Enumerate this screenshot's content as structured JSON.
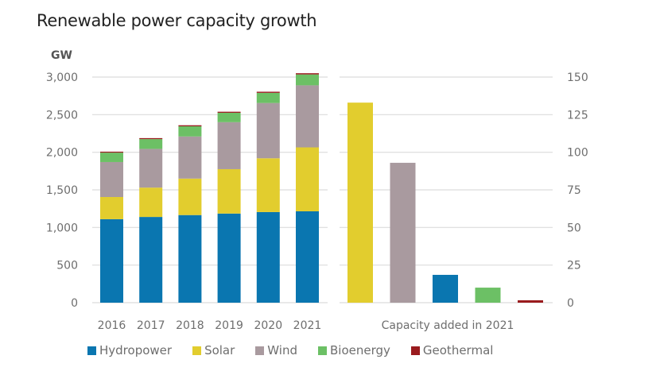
{
  "chart_data": [
    {
      "type": "bar",
      "stacked": true,
      "title": "Renewable power capacity growth",
      "ylabel": "GW",
      "xlabel": "",
      "ylim": [
        0,
        3000
      ],
      "yticks": [
        0,
        500,
        1000,
        1500,
        2000,
        2500,
        3000
      ],
      "ytick_labels": [
        "0",
        "500",
        "1,000",
        "1,500",
        "2,000",
        "2,500",
        "3,000"
      ],
      "grid": true,
      "categories": [
        "2016",
        "2017",
        "2018",
        "2019",
        "2020",
        "2021"
      ],
      "series": [
        {
          "name": "Hydropower",
          "color": "#0a76b0",
          "values": [
            1110,
            1140,
            1165,
            1185,
            1205,
            1215
          ]
        },
        {
          "name": "Solar",
          "color": "#e2cd2e",
          "values": [
            295,
            390,
            485,
            590,
            715,
            850
          ]
        },
        {
          "name": "Wind",
          "color": "#a99a9f",
          "values": [
            465,
            515,
            560,
            625,
            735,
            825
          ]
        },
        {
          "name": "Bioenergy",
          "color": "#6cc065",
          "values": [
            125,
            130,
            135,
            125,
            135,
            145
          ]
        },
        {
          "name": "Geothermal",
          "color": "#9a1b1e",
          "values": [
            13,
            13,
            14,
            14,
            15,
            16
          ]
        }
      ]
    },
    {
      "type": "bar",
      "title": "",
      "xlabel": "Capacity added in 2021",
      "ylabel": "",
      "ylim": [
        0,
        150
      ],
      "yticks": [
        0,
        25,
        50,
        75,
        100,
        125,
        150
      ],
      "ytick_labels": [
        "0",
        "25",
        "50",
        "75",
        "100",
        "125",
        "150"
      ],
      "axis_side": "right",
      "grid": true,
      "categories": [
        "Solar",
        "Wind",
        "Hydropower",
        "Bioenergy",
        "Geothermal"
      ],
      "values": [
        133,
        93,
        18.5,
        10,
        1.6
      ],
      "colors": [
        "#e2cd2e",
        "#a99a9f",
        "#0a76b0",
        "#6cc065",
        "#9a1b1e"
      ]
    }
  ],
  "legend": {
    "placement": "bottom",
    "items": [
      {
        "label": "Hydropower",
        "color": "#0a76b0"
      },
      {
        "label": "Solar",
        "color": "#e2cd2e"
      },
      {
        "label": "Wind",
        "color": "#a99a9f"
      },
      {
        "label": "Bioenergy",
        "color": "#6cc065"
      },
      {
        "label": "Geothermal",
        "color": "#9a1b1e"
      }
    ]
  }
}
